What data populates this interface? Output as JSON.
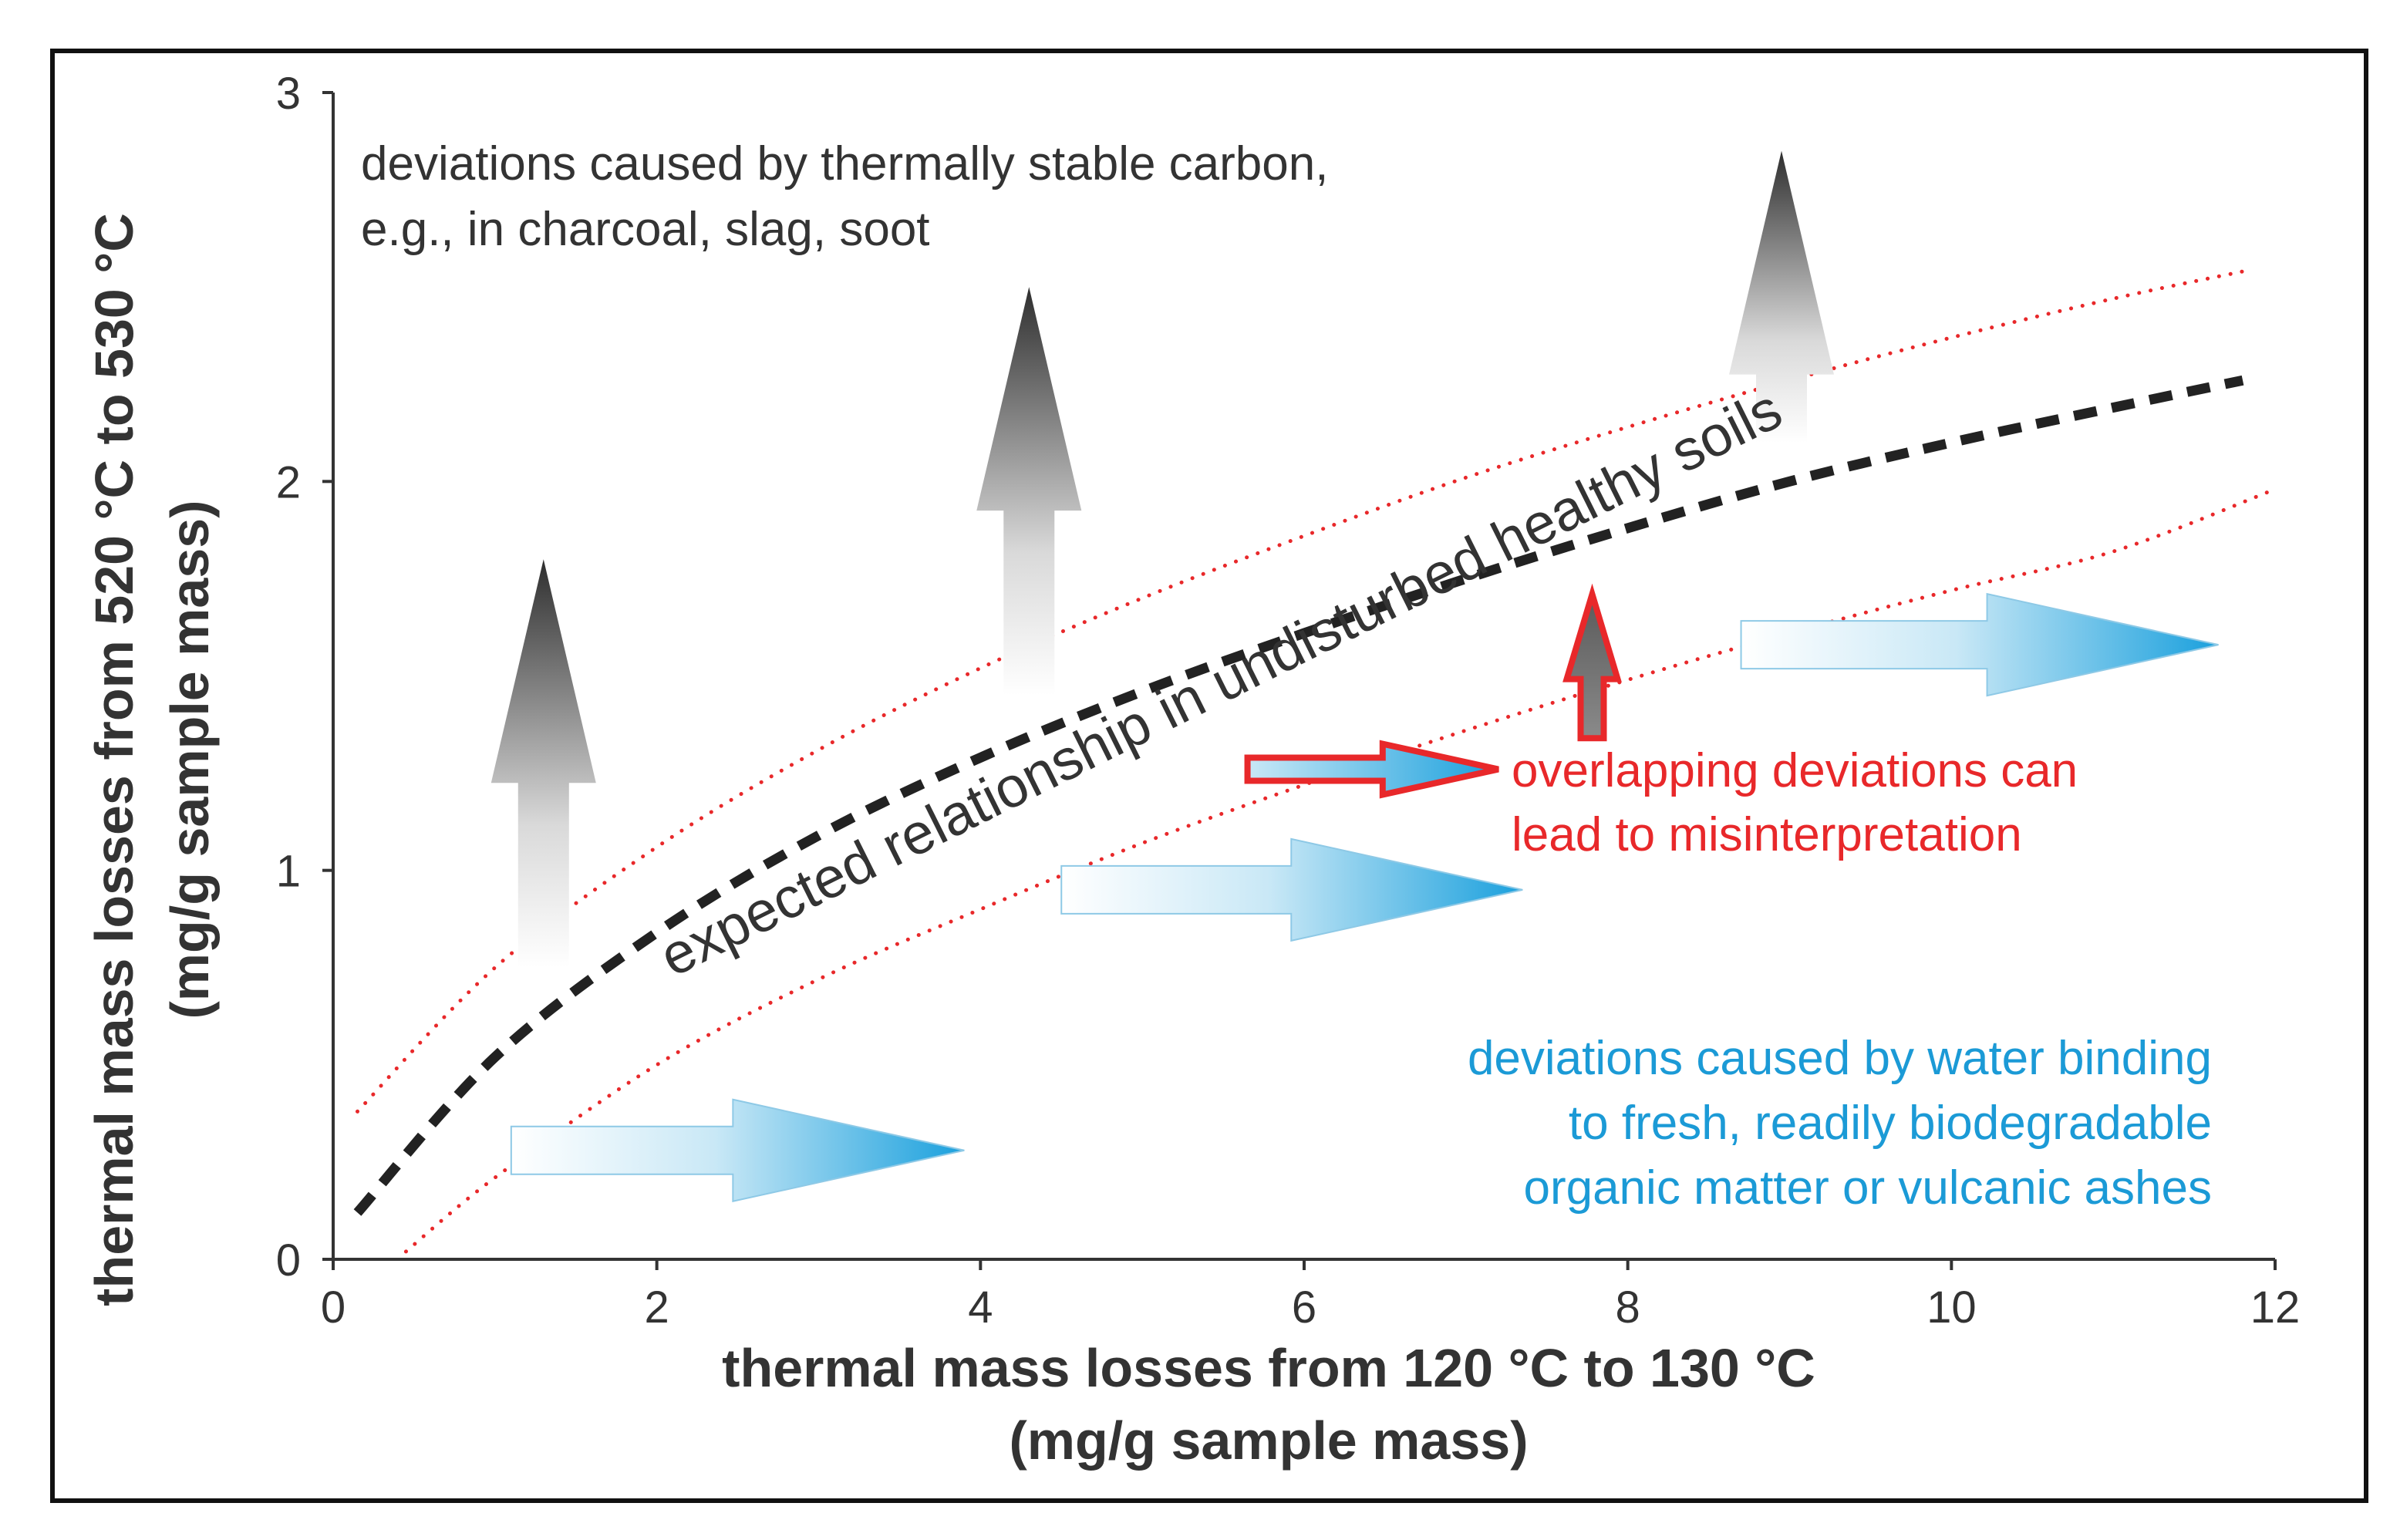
{
  "chart_data": {
    "type": "line",
    "x_axis": {
      "label_line1": "thermal mass losses from 120 °C to 130 °C",
      "label_line2": "(mg/g sample mass)",
      "xlim": [
        0,
        12
      ],
      "ticks": [
        0,
        2,
        4,
        6,
        8,
        10,
        12
      ],
      "tick_labels": [
        "0",
        "2",
        "4",
        "6",
        "8",
        "10",
        "12"
      ]
    },
    "y_axis": {
      "label_line1": "thermal mass losses from 520 °C to 530 °C",
      "label_line2": "(mg/g sample mass)",
      "ylim": [
        0,
        3
      ],
      "ticks": [
        0,
        1,
        2,
        3
      ],
      "tick_labels": [
        "0",
        "1",
        "2",
        "3"
      ]
    },
    "series": [
      {
        "name": "expected relationship in undisturbed healthy soils",
        "style": "dashed",
        "color": "#222222",
        "x": [
          0.15,
          1,
          2,
          3,
          4,
          5,
          6,
          7,
          8,
          9,
          10,
          11,
          11.8
        ],
        "y": [
          0.12,
          0.52,
          0.84,
          1.09,
          1.29,
          1.46,
          1.61,
          1.75,
          1.88,
          2.0,
          2.1,
          2.19,
          2.26
        ]
      },
      {
        "name": "upper bound",
        "style": "dotted",
        "color": "#e8282a",
        "x": [
          0.15,
          1,
          2,
          3,
          4,
          5,
          6,
          7,
          8,
          9,
          10,
          11,
          11.8
        ],
        "y": [
          0.38,
          0.75,
          1.06,
          1.31,
          1.52,
          1.7,
          1.86,
          2.01,
          2.14,
          2.26,
          2.37,
          2.47,
          2.54
        ]
      },
      {
        "name": "lower bound",
        "style": "dotted",
        "color": "#e8282a",
        "x": [
          0.45,
          1,
          2,
          3,
          4,
          5,
          6,
          7,
          8,
          9,
          10,
          11,
          12
        ],
        "y": [
          0.02,
          0.21,
          0.5,
          0.72,
          0.9,
          1.07,
          1.22,
          1.36,
          1.49,
          1.61,
          1.72,
          1.82,
          1.98
        ]
      }
    ],
    "annotations": {
      "curve_label": "expected relationship in undisturbed healthy soils",
      "carbon_text": [
        "deviations caused by thermally stable carbon,",
        "e.g., in charcoal, slag, soot"
      ],
      "water_text": [
        "deviations caused by water binding",
        "to fresh, readily biodegradable",
        "organic matter or vulcanic ashes"
      ],
      "overlap_text": [
        "overlapping deviations can",
        "lead to misinterpretation"
      ]
    },
    "arrows": {
      "carbon_up": [
        {
          "x": 1.3,
          "y_from": 0.75,
          "y_to": 1.8
        },
        {
          "x": 4.3,
          "y_from": 1.45,
          "y_to": 2.5
        },
        {
          "x": 8.95,
          "y_from": 2.1,
          "y_to": 2.85
        }
      ],
      "water_right": [
        {
          "y": 0.28,
          "x_from": 1.1,
          "x_to": 3.9
        },
        {
          "y": 0.95,
          "x_from": 4.5,
          "x_to": 7.35
        },
        {
          "y": 1.58,
          "x_from": 8.7,
          "x_to": 11.65
        }
      ],
      "overlap": [
        {
          "direction": "right",
          "y": 1.26,
          "x_from": 5.65,
          "x_to": 7.2
        },
        {
          "direction": "up",
          "x": 7.78,
          "y_from": 1.34,
          "y_to": 1.71
        }
      ]
    },
    "colors": {
      "carbon": "#333333",
      "water": "#2aa6e0",
      "overlap": "#e8282a",
      "axis": "#333333"
    }
  }
}
